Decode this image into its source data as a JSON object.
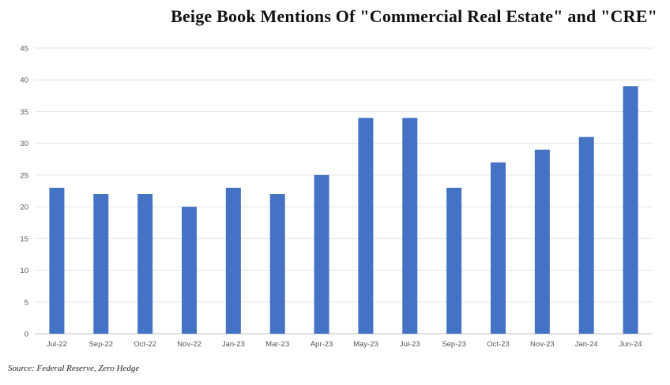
{
  "title": "Beige Book Mentions Of \"Commercial Real Estate\" and \"CRE\"",
  "source": "Source: Federal Reserve, Zero Hedge",
  "colors": {
    "bar": "#4472c4",
    "grid": "#e3e3e3",
    "axis": "#bfbfbf"
  },
  "chart_data": {
    "type": "bar",
    "title": "Beige Book Mentions Of \"Commercial Real Estate\" and \"CRE\"",
    "xlabel": "",
    "ylabel": "",
    "categories": [
      "Jul-22",
      "Sep-22",
      "Oct-22",
      "Nov-22",
      "Jan-23",
      "Mar-23",
      "Apr-23",
      "May-23",
      "Jul-23",
      "Sep-23",
      "Oct-23",
      "Nov-23",
      "Jan-24",
      "Jun-24"
    ],
    "values": [
      23,
      22,
      22,
      20,
      23,
      22,
      25,
      34,
      34,
      23,
      27,
      29,
      31,
      39
    ],
    "ylim": [
      0,
      45
    ],
    "yticks": [
      0,
      5,
      10,
      15,
      20,
      25,
      30,
      35,
      40,
      45
    ],
    "grid": true,
    "legend": "none"
  }
}
